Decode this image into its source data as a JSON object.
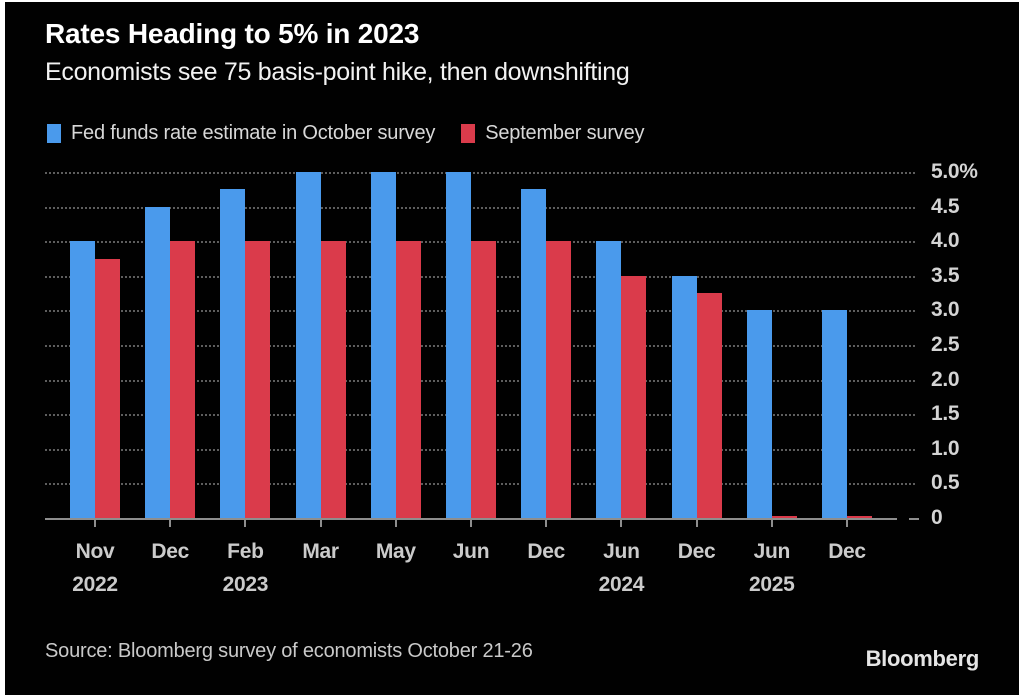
{
  "header": {
    "title": "Rates Heading to 5% in 2023",
    "subtitle": "Economists see 75 basis-point hike, then downshifting"
  },
  "legend": {
    "items": [
      {
        "label": "Fed funds rate estimate in October survey",
        "color": "#4A9AEC"
      },
      {
        "label": "September survey",
        "color": "#DA3B4B"
      }
    ]
  },
  "footer": {
    "source": "Source: Bloomberg survey of economists October 21-26",
    "logo": "Bloomberg"
  },
  "chart_data": {
    "type": "bar",
    "title": "Rates Heading to 5% in 2023",
    "subtitle": "Economists see 75 basis-point hike, then downshifting",
    "categories": [
      {
        "month": "Nov",
        "year": "2022"
      },
      {
        "month": "Dec"
      },
      {
        "month": "Feb",
        "year": "2023"
      },
      {
        "month": "Mar"
      },
      {
        "month": "May"
      },
      {
        "month": "Jun"
      },
      {
        "month": "Dec"
      },
      {
        "month": "Jun",
        "year": "2024"
      },
      {
        "month": "Dec"
      },
      {
        "month": "Jun",
        "year": "2025"
      },
      {
        "month": "Dec"
      }
    ],
    "series": [
      {
        "name": "Fed funds rate estimate in October survey",
        "color": "#4A9AEC",
        "values": [
          4.0,
          4.5,
          4.75,
          5.0,
          5.0,
          5.0,
          4.75,
          4.0,
          3.5,
          3.0,
          3.0
        ]
      },
      {
        "name": "September survey",
        "color": "#DA3B4B",
        "values": [
          3.75,
          4.0,
          4.0,
          4.0,
          4.0,
          4.0,
          4.0,
          3.5,
          3.25,
          0.03,
          0.03
        ]
      }
    ],
    "ylabel": "%",
    "xlabel": "",
    "ylim": [
      0,
      5
    ],
    "ytick_step": 0.5,
    "ytick_labels": [
      "5.0%",
      "4.5",
      "4.0",
      "3.5",
      "3.0",
      "2.5",
      "2.0",
      "1.5",
      "1.0",
      "0.5",
      "0"
    ],
    "grid": "dotted-horizontal",
    "legend_position": "top-left",
    "background": "#010101"
  }
}
